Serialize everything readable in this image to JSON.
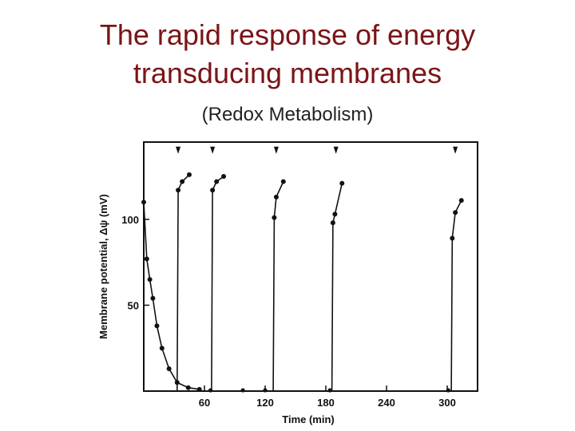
{
  "slide": {
    "title_line1": "The rapid response of energy",
    "title_line2": "transducing membranes",
    "subtitle": "(Redox Metabolism)"
  },
  "colors": {
    "title": "#7b1416",
    "ink": "#111111"
  },
  "chart_data": {
    "type": "line",
    "xlabel": "Time (min)",
    "ylabel": "Membrane potential, Δψ (mV)",
    "xlim": [
      0,
      330
    ],
    "ylim": [
      0,
      145
    ],
    "x_ticks": [
      60,
      120,
      180,
      240,
      300
    ],
    "y_ticks": [
      50,
      100
    ],
    "grid": false,
    "series": [
      {
        "segment": "decay",
        "points": [
          [
            0,
            110
          ],
          [
            3,
            77
          ],
          [
            6,
            65
          ],
          [
            9,
            54
          ],
          [
            13,
            38
          ],
          [
            18,
            25
          ],
          [
            25,
            13
          ],
          [
            33,
            5
          ],
          [
            44,
            2
          ],
          [
            55,
            1
          ]
        ]
      },
      {
        "segment": "recovery-1",
        "points": [
          [
            33,
            0
          ],
          [
            34,
            117
          ],
          [
            38,
            122
          ],
          [
            45,
            126
          ]
        ]
      },
      {
        "segment": "recovery-2",
        "points": [
          [
            67,
            0
          ],
          [
            68,
            117
          ],
          [
            72,
            122
          ],
          [
            79,
            125
          ]
        ]
      },
      {
        "segment": "recovery-3",
        "points": [
          [
            128,
            0
          ],
          [
            129,
            101
          ],
          [
            131,
            113
          ],
          [
            138,
            122
          ]
        ]
      },
      {
        "segment": "recovery-4",
        "points": [
          [
            186,
            0
          ],
          [
            187,
            98
          ],
          [
            189,
            103
          ],
          [
            196,
            121
          ]
        ]
      },
      {
        "segment": "recovery-5",
        "points": [
          [
            304,
            0
          ],
          [
            305,
            89
          ],
          [
            308,
            104
          ],
          [
            314,
            111
          ]
        ]
      }
    ],
    "baseline_points": [
      [
        66,
        0
      ],
      [
        98,
        0
      ],
      [
        120,
        0
      ],
      [
        184,
        0
      ],
      [
        301,
        0
      ]
    ],
    "markers": [
      [
        34,
        140
      ],
      [
        68,
        140
      ],
      [
        131,
        140
      ],
      [
        190,
        140
      ],
      [
        308,
        140
      ]
    ],
    "markers_note": "arrowheads at top of plot"
  }
}
